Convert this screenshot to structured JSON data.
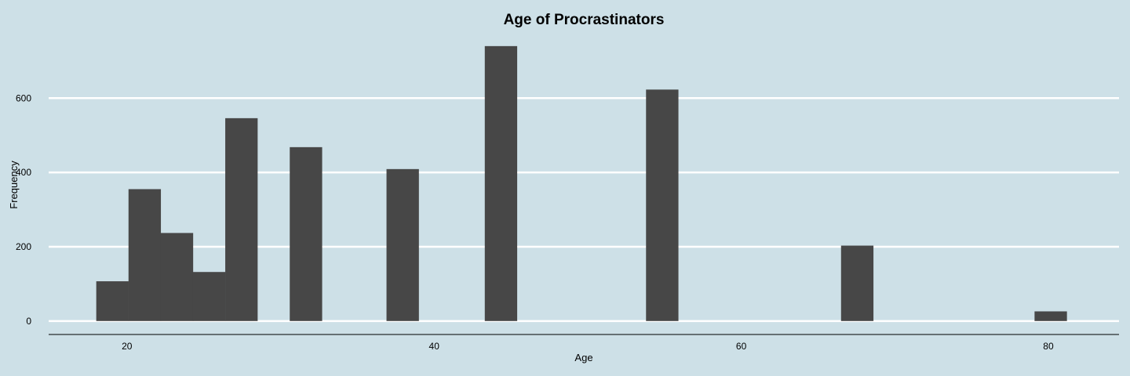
{
  "chart_data": {
    "type": "bar",
    "title": "Age of Procrastinators",
    "xlabel": "Age",
    "ylabel": "Frequency",
    "xlim": [
      14.9,
      84.6
    ],
    "ylim": [
      -32,
      765
    ],
    "x_ticks": [
      20,
      40,
      60,
      80
    ],
    "y_ticks": [
      0,
      200,
      400,
      600
    ],
    "grid": true,
    "bin_width": 2.11,
    "bins": [
      {
        "x0": 18.0,
        "value": 107
      },
      {
        "x0": 20.1,
        "value": 355
      },
      {
        "x0": 22.2,
        "value": 237
      },
      {
        "x0": 24.3,
        "value": 132
      },
      {
        "x0": 26.4,
        "value": 546
      },
      {
        "x0": 30.6,
        "value": 468
      },
      {
        "x0": 36.9,
        "value": 409
      },
      {
        "x0": 43.3,
        "value": 740
      },
      {
        "x0": 53.8,
        "value": 623
      },
      {
        "x0": 66.5,
        "value": 203
      },
      {
        "x0": 79.1,
        "value": 26
      }
    ]
  }
}
